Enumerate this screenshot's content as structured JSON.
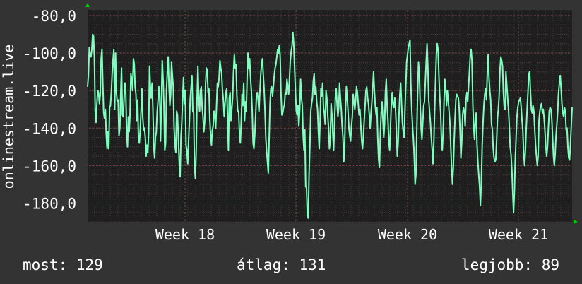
{
  "chart_data": {
    "type": "line",
    "title": "",
    "xlabel": "",
    "ylabel": "onlinestream.live",
    "y_tick_labels": [
      "-80,0",
      "-100,0",
      "-120,0",
      "-140,0",
      "-160,0",
      "-180,0"
    ],
    "y_ticks": [
      -80,
      -100,
      -120,
      -140,
      -160,
      -180
    ],
    "x_tick_labels": [
      "Week 18",
      "Week 19",
      "Week 20",
      "Week 21"
    ],
    "ylim": [
      -190,
      -77
    ],
    "grid": true,
    "colors": {
      "background": "#333333",
      "plot_background": "#1f1f1f",
      "grid_minor": "#4a3a3a",
      "grid_major": "#6a4a4a",
      "line": "#7fffbf",
      "axis_arrow": "#00cc00"
    },
    "series": [
      {
        "values": [
          -118,
          -112,
          -97,
          -101,
          -102,
          -98,
          -90,
          -91,
          -102,
          -131,
          -137,
          -127,
          -120,
          -121,
          -127,
          -122,
          -103,
          -98,
          -116,
          -132,
          -135,
          -130,
          -143,
          -151,
          -142,
          -151,
          -129,
          -128,
          -121,
          -111,
          -104,
          -98,
          -130,
          -100,
          -121,
          -126,
          -125,
          -144,
          -140,
          -122,
          -108,
          -133,
          -134,
          -124,
          -116,
          -121,
          -142,
          -150,
          -134,
          -142,
          -133,
          -111,
          -114,
          -120,
          -103,
          -106,
          -118,
          -122,
          -136,
          -125,
          -147,
          -148,
          -141,
          -131,
          -119,
          -134,
          -141,
          -140,
          -145,
          -155,
          -149,
          -153,
          -142,
          -107,
          -118,
          -124,
          -116,
          -130,
          -150,
          -156,
          -145,
          -142,
          -131,
          -126,
          -118,
          -123,
          -147,
          -127,
          -104,
          -114,
          -128,
          -152,
          -148,
          -120,
          -110,
          -102,
          -118,
          -128,
          -122,
          -105,
          -112,
          -118,
          -140,
          -149,
          -153,
          -131,
          -133,
          -145,
          -159,
          -166,
          -145,
          -137,
          -124,
          -113,
          -127,
          -120,
          -149,
          -152,
          -159,
          -147,
          -136,
          -124,
          -118,
          -112,
          -131,
          -132,
          -160,
          -167,
          -152,
          -124,
          -107,
          -124,
          -131,
          -120,
          -118,
          -129,
          -134,
          -142,
          -137,
          -117,
          -108,
          -109,
          -121,
          -119,
          -135,
          -144,
          -149,
          -141,
          -139,
          -131,
          -133,
          -140,
          -128,
          -116,
          -118,
          -113,
          -104,
          -108,
          -111,
          -120,
          -125,
          -134,
          -127,
          -121,
          -119,
          -134,
          -152,
          -124,
          -121,
          -136,
          -130,
          -124,
          -110,
          -101,
          -108,
          -106,
          -123,
          -131,
          -131,
          -143,
          -148,
          -137,
          -122,
          -128,
          -116,
          -136,
          -126,
          -131,
          -113,
          -100,
          -108,
          -103,
          -113,
          -120,
          -131,
          -148,
          -151,
          -144,
          -134,
          -123,
          -121,
          -125,
          -131,
          -121,
          -112,
          -106,
          -103,
          -111,
          -119,
          -130,
          -145,
          -152,
          -158,
          -164,
          -145,
          -127,
          -119,
          -118,
          -123,
          -118,
          -112,
          -108,
          -106,
          -102,
          -98,
          -100,
          -96,
          -102,
          -122,
          -133,
          -132,
          -129,
          -128,
          -121,
          -122,
          -114,
          -118,
          -122,
          -113,
          -104,
          -99,
          -96,
          -89,
          -95,
          -108,
          -120,
          -131,
          -133,
          -128,
          -139,
          -130,
          -114,
          -124,
          -128,
          -144,
          -152,
          -141,
          -171,
          -172,
          -187,
          -188,
          -165,
          -149,
          -131,
          -127,
          -124,
          -115,
          -111,
          -122,
          -118,
          -126,
          -130,
          -142,
          -151,
          -136,
          -119,
          -123,
          -116,
          -129,
          -132,
          -138,
          -120,
          -124,
          -133,
          -140,
          -151,
          -146,
          -127,
          -133,
          -143,
          -152,
          -138,
          -124,
          -119,
          -127,
          -134,
          -129,
          -116,
          -124,
          -130,
          -139,
          -145,
          -158,
          -148,
          -130,
          -118,
          -124,
          -131,
          -140,
          -144,
          -147,
          -139,
          -134,
          -122,
          -126,
          -130,
          -125,
          -118,
          -121,
          -127,
          -133,
          -130,
          -139,
          -147,
          -151,
          -144,
          -136,
          -128,
          -120,
          -118,
          -124,
          -127,
          -133,
          -140,
          -132,
          -126,
          -119,
          -110,
          -120,
          -128,
          -133,
          -129,
          -146,
          -157,
          -161,
          -143,
          -132,
          -126,
          -135,
          -145,
          -138,
          -121,
          -114,
          -128,
          -136,
          -147,
          -152,
          -139,
          -127,
          -121,
          -128,
          -129,
          -124,
          -131,
          -141,
          -155,
          -148,
          -133,
          -122,
          -116,
          -127,
          -137,
          -142,
          -145,
          -131,
          -118,
          -105,
          -101,
          -97,
          -95,
          -93,
          -117,
          -130,
          -139,
          -146,
          -155,
          -170,
          -165,
          -142,
          -121,
          -105,
          -111,
          -127,
          -140,
          -146,
          -137,
          -128,
          -126,
          -115,
          -105,
          -95,
          -108,
          -125,
          -131,
          -137,
          -145,
          -151,
          -159,
          -148,
          -131,
          -115,
          -101,
          -95,
          -98,
          -112,
          -123,
          -131,
          -146,
          -152,
          -142,
          -127,
          -114,
          -118,
          -128,
          -120,
          -125,
          -131,
          -137,
          -150,
          -161,
          -170,
          -161,
          -147,
          -135,
          -125,
          -122,
          -123,
          -124,
          -130,
          -142,
          -156,
          -147,
          -133,
          -129,
          -131,
          -139,
          -125,
          -121,
          -126,
          -118,
          -110,
          -101,
          -98,
          -104,
          -127,
          -139,
          -146,
          -135,
          -132,
          -149,
          -158,
          -165,
          -171,
          -181,
          -168,
          -149,
          -137,
          -128,
          -122,
          -119,
          -125,
          -111,
          -101,
          -113,
          -120,
          -125,
          -138,
          -141,
          -151,
          -156,
          -158,
          -157,
          -147,
          -135,
          -130,
          -123,
          -109,
          -102,
          -104,
          -107,
          -121,
          -129,
          -130,
          -110,
          -117,
          -124,
          -130,
          -139,
          -150,
          -154,
          -162,
          -174,
          -185,
          -174,
          -157,
          -145,
          -134,
          -129,
          -126,
          -125,
          -124,
          -129,
          -136,
          -142,
          -154,
          -160,
          -152,
          -140,
          -130,
          -121,
          -111,
          -110,
          -121,
          -130,
          -132,
          -128,
          -131,
          -141,
          -149,
          -155,
          -160,
          -155,
          -136,
          -131,
          -128,
          -127,
          -132,
          -130,
          -135,
          -142,
          -150,
          -155,
          -150,
          -140,
          -131,
          -129,
          -130,
          -135,
          -145,
          -155,
          -160,
          -154,
          -144,
          -138,
          -131,
          -121,
          -116,
          -112,
          -119,
          -127,
          -132,
          -134,
          -129,
          -131,
          -141,
          -140,
          -150,
          -156,
          -157,
          -149,
          -139,
          -129
        ]
      }
    ]
  },
  "stats": {
    "current": "most: 129",
    "average": "átlag: 131",
    "best": "legjobb: 89"
  }
}
